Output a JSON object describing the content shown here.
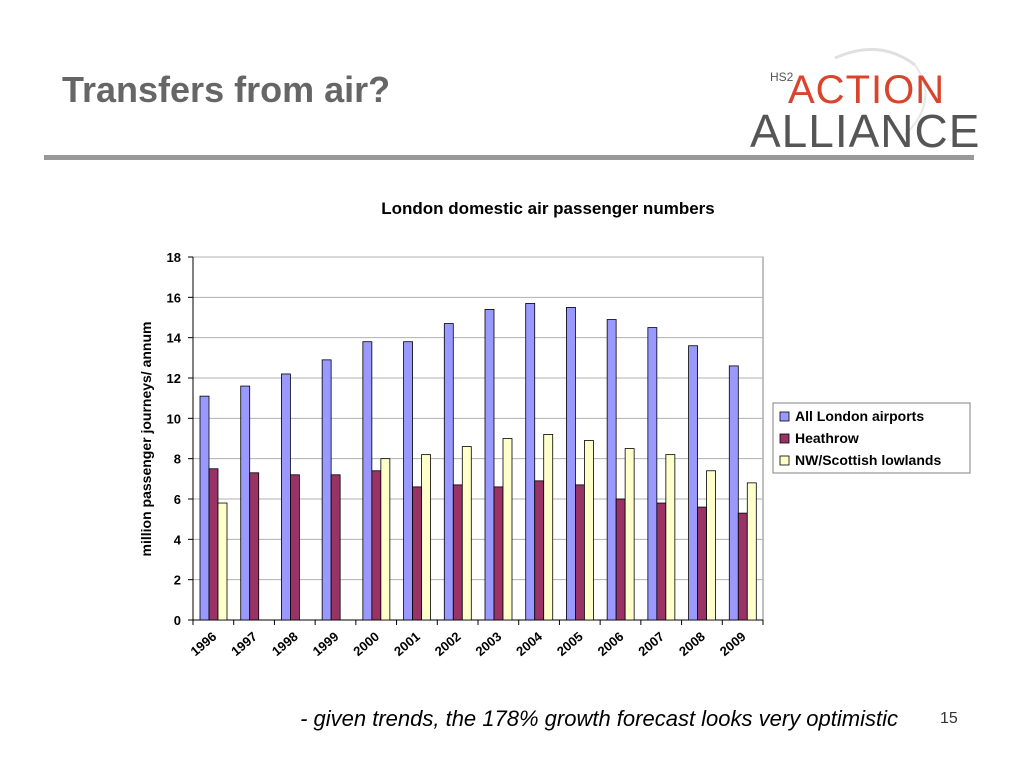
{
  "slide": {
    "title": "Transfers from air?",
    "footnote": "- given trends, the 178% growth forecast looks very optimistic",
    "page_number": "15"
  },
  "logo": {
    "prefix": "HS2",
    "word1": "ACTION",
    "word2": "ALLIANCE"
  },
  "colors": {
    "series": [
      "#9999ff",
      "#993366",
      "#ffffcc"
    ],
    "title": "#666666",
    "rule": "#999999"
  },
  "chart_data": {
    "type": "bar",
    "title": "London domestic air passenger numbers",
    "xlabel": "",
    "ylabel": "million passenger journeys/ annum",
    "ylim": [
      0,
      18
    ],
    "yticks": [
      0,
      2,
      4,
      6,
      8,
      10,
      12,
      14,
      16,
      18
    ],
    "grid": true,
    "legend_position": "right",
    "categories": [
      "1996",
      "1997",
      "1998",
      "1999",
      "2000",
      "2001",
      "2002",
      "2003",
      "2004",
      "2005",
      "2006",
      "2007",
      "2008",
      "2009"
    ],
    "series": [
      {
        "name": "All London airports",
        "values": [
          11.1,
          11.6,
          12.2,
          12.9,
          13.8,
          13.8,
          14.7,
          15.4,
          15.7,
          15.5,
          14.9,
          14.5,
          13.6,
          12.6
        ]
      },
      {
        "name": "Heathrow",
        "values": [
          7.5,
          7.3,
          7.2,
          7.2,
          7.4,
          6.6,
          6.7,
          6.6,
          6.9,
          6.7,
          6.0,
          5.8,
          5.6,
          5.3
        ]
      },
      {
        "name": "NW/Scottish lowlands",
        "values": [
          5.8,
          null,
          null,
          null,
          8.0,
          8.2,
          8.6,
          9.0,
          9.2,
          8.9,
          8.5,
          8.2,
          7.4,
          6.8
        ]
      }
    ]
  }
}
